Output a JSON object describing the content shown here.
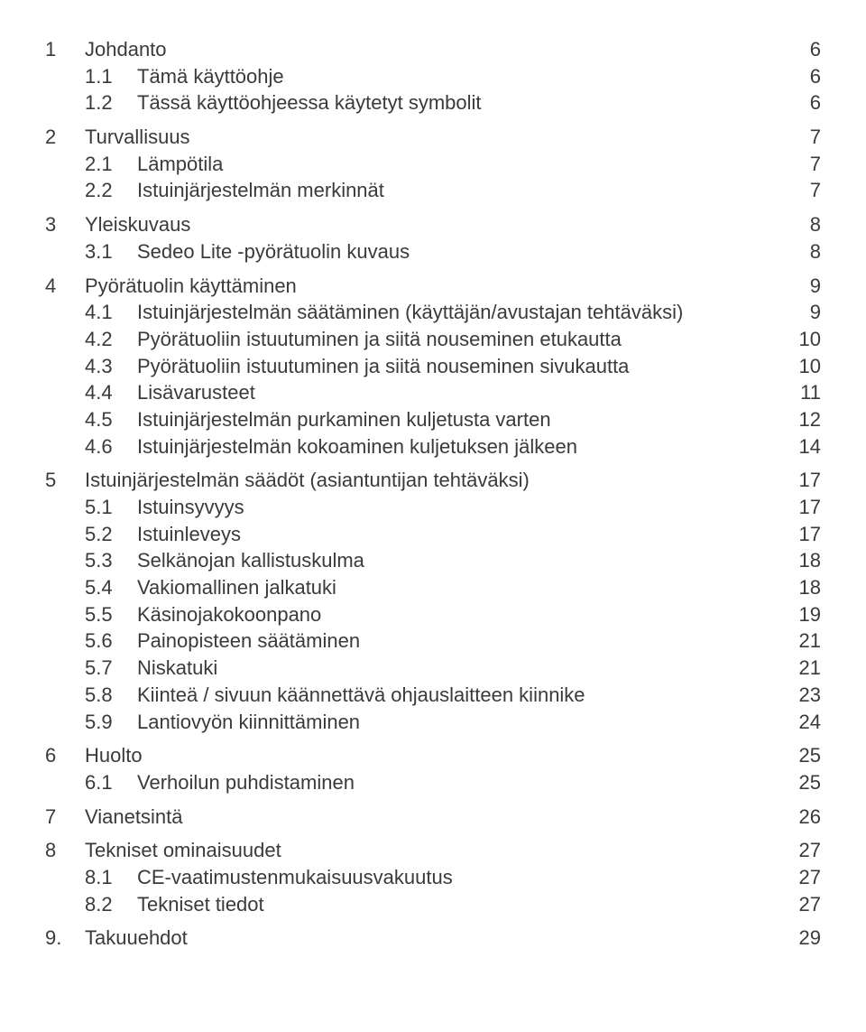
{
  "toc": [
    {
      "num": "1",
      "title": "Johdanto",
      "page": "6",
      "children": [
        {
          "num": "1.1",
          "title": "Tämä käyttöohje",
          "page": "6"
        },
        {
          "num": "1.2",
          "title": "Tässä käyttöohjeessa käytetyt symbolit",
          "page": "6"
        }
      ]
    },
    {
      "num": "2",
      "title": "Turvallisuus",
      "page": "7",
      "children": [
        {
          "num": "2.1",
          "title": "Lämpötila",
          "page": "7"
        },
        {
          "num": "2.2",
          "title": "Istuinjärjestelmän merkinnät",
          "page": "7"
        }
      ]
    },
    {
      "num": "3",
      "title": "Yleiskuvaus",
      "page": "8",
      "children": [
        {
          "num": "3.1",
          "title": "Sedeo Lite -pyörätuolin kuvaus",
          "page": "8"
        }
      ]
    },
    {
      "num": "4",
      "title": "Pyörätuolin käyttäminen",
      "page": "9",
      "children": [
        {
          "num": "4.1",
          "title": "Istuinjärjestelmän säätäminen (käyttäjän/avustajan tehtäväksi)",
          "page": "9"
        },
        {
          "num": "4.2",
          "title": "Pyörätuoliin istuutuminen ja siitä nouseminen etukautta",
          "page": "10"
        },
        {
          "num": "4.3",
          "title": "Pyörätuoliin istuutuminen ja siitä nouseminen sivukautta",
          "page": "10"
        },
        {
          "num": "4.4",
          "title": "Lisävarusteet",
          "page": "11"
        },
        {
          "num": "4.5",
          "title": "Istuinjärjestelmän purkaminen kuljetusta varten",
          "page": "12"
        },
        {
          "num": "4.6",
          "title": "Istuinjärjestelmän kokoaminen kuljetuksen jälkeen",
          "page": "14"
        }
      ]
    },
    {
      "num": "5",
      "title": "Istuinjärjestelmän säädöt (asiantuntijan tehtäväksi)",
      "page": "17",
      "children": [
        {
          "num": "5.1",
          "title": "Istuinsyvyys",
          "page": "17"
        },
        {
          "num": "5.2",
          "title": "Istuinleveys",
          "page": "17"
        },
        {
          "num": "5.3",
          "title": "Selkänojan kallistuskulma",
          "page": "18"
        },
        {
          "num": "5.4",
          "title": "Vakiomallinen jalkatuki",
          "page": "18"
        },
        {
          "num": "5.5",
          "title": "Käsinojakokoonpano",
          "page": "19"
        },
        {
          "num": "5.6",
          "title": "Painopisteen säätäminen",
          "page": "21"
        },
        {
          "num": "5.7",
          "title": "Niskatuki",
          "page": "21"
        },
        {
          "num": "5.8",
          "title": "Kiinteä / sivuun käännettävä ohjauslaitteen kiinnike",
          "page": "23"
        },
        {
          "num": "5.9",
          "title": "Lantiovyön kiinnittäminen",
          "page": "24"
        }
      ]
    },
    {
      "num": "6",
      "title": "Huolto",
      "page": "25",
      "children": [
        {
          "num": "6.1",
          "title": "Verhoilun puhdistaminen",
          "page": "25"
        }
      ]
    },
    {
      "num": "7",
      "title": "Vianetsintä",
      "page": "26",
      "children": []
    },
    {
      "num": "8",
      "title": "Tekniset ominaisuudet",
      "page": "27",
      "children": [
        {
          "num": "8.1",
          "title": "CE-vaatimustenmukaisuusvakuutus",
          "page": "27"
        },
        {
          "num": "8.2",
          "title": "Tekniset tiedot",
          "page": "27"
        }
      ]
    },
    {
      "num": "9.",
      "title": "Takuuehdot",
      "page": "29",
      "children": []
    }
  ]
}
